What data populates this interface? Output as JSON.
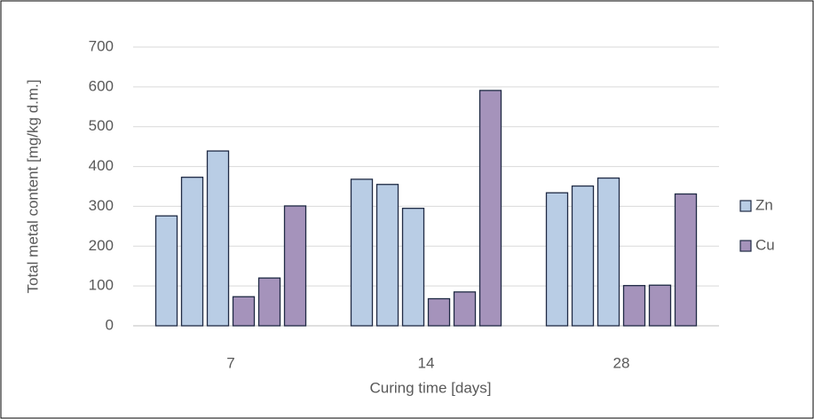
{
  "chart_data": {
    "type": "bar",
    "x_label": "Curing time [days]",
    "y_label": "Total metal content [mg/kg d.m.]",
    "categories": [
      "7",
      "14",
      "28"
    ],
    "series": [
      {
        "name": "Zn",
        "color": "#b9cde5",
        "values": [
          [
            276,
            373,
            439
          ],
          [
            368,
            355,
            295
          ],
          [
            334,
            351,
            371
          ]
        ]
      },
      {
        "name": "Cu",
        "color": "#a593bb",
        "values": [
          [
            73,
            120,
            301
          ],
          [
            68,
            85,
            591
          ],
          [
            101,
            102,
            331
          ]
        ]
      }
    ],
    "ylim": [
      0,
      700
    ],
    "yticks": [
      0,
      100,
      200,
      300,
      400,
      500,
      600,
      700
    ],
    "grid": true,
    "legend": "right"
  }
}
